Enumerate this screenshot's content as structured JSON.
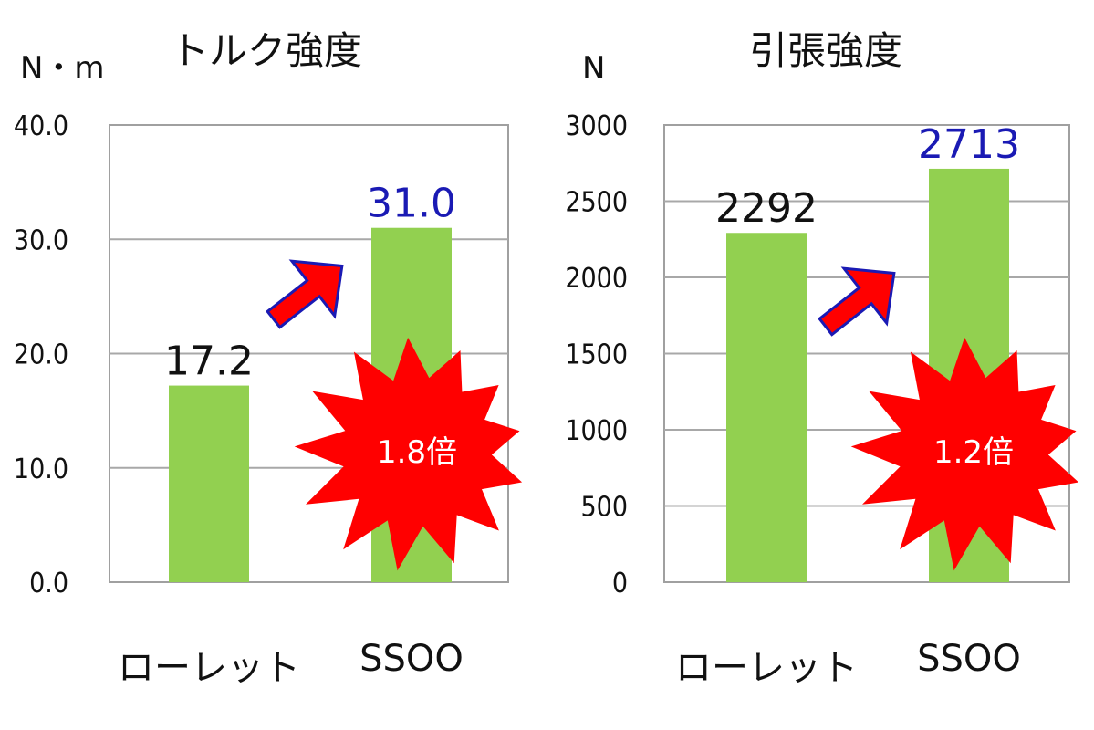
{
  "chart_data": [
    {
      "type": "bar",
      "title": "トルク強度",
      "unit_label": "N・m",
      "categories": [
        "ローレット",
        "SSOO"
      ],
      "values": [
        17.2,
        31.0
      ],
      "data_labels": [
        "17.2",
        "31.0"
      ],
      "label_colors": [
        "#111111",
        "#1a1ab4"
      ],
      "yticks": [
        "0.0",
        "10.0",
        "20.0",
        "30.0",
        "40.0"
      ],
      "ylim": [
        0,
        40
      ],
      "grid": true,
      "bar_color": "#92d050",
      "callout": {
        "text": "1.8倍",
        "color": "#ff0000"
      }
    },
    {
      "type": "bar",
      "title": "引張強度",
      "unit_label": "N",
      "categories": [
        "ローレット",
        "SSOO"
      ],
      "values": [
        2292,
        2713
      ],
      "data_labels": [
        "2292",
        "2713"
      ],
      "label_colors": [
        "#111111",
        "#1a1ab4"
      ],
      "yticks": [
        "0",
        "500",
        "1000",
        "1500",
        "2000",
        "2500",
        "3000"
      ],
      "ylim": [
        0,
        3000
      ],
      "grid": true,
      "bar_color": "#92d050",
      "callout": {
        "text": "1.2倍",
        "color": "#ff0000"
      }
    }
  ]
}
